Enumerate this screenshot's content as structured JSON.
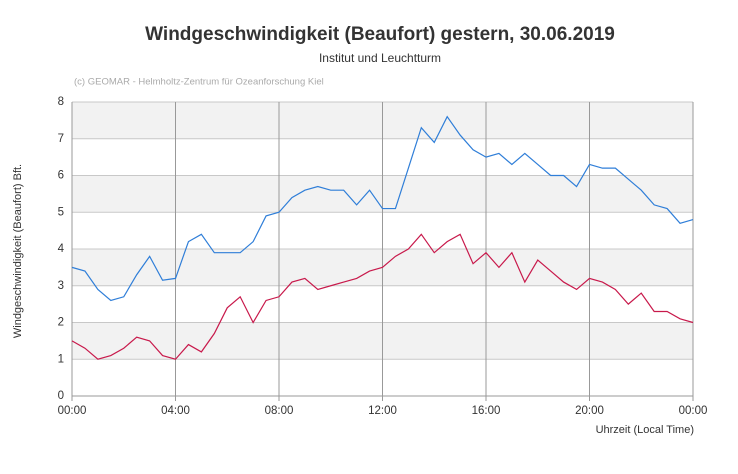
{
  "chart_data": {
    "type": "line",
    "title": "Windgeschwindigkeit (Beaufort) gestern, 30.06.2019",
    "subtitle": "Institut und Leuchtturm",
    "credit": "(c) GEOMAR - Helmholtz-Zentrum für Ozeanforschung Kiel",
    "y_label": "Windgeschwindigkeit (Beaufort)  Bft.",
    "x_label": "Uhrzeit (Local Time)",
    "x": [
      0,
      0.5,
      1,
      1.5,
      2,
      2.5,
      3,
      3.5,
      4,
      4.5,
      5,
      5.5,
      6,
      6.5,
      7,
      7.5,
      8,
      8.5,
      9,
      9.5,
      10,
      10.5,
      11,
      11.5,
      12,
      12.5,
      13,
      13.5,
      14,
      14.5,
      15,
      15.5,
      16,
      16.5,
      17,
      17.5,
      18,
      18.5,
      19,
      19.5,
      20,
      20.5,
      21,
      21.5,
      22,
      22.5,
      23,
      23.5,
      24
    ],
    "series": [
      {
        "name": "Institut",
        "color": "#2f7ed8",
        "values": [
          3.5,
          3.4,
          2.9,
          2.6,
          2.7,
          3.3,
          3.8,
          3.15,
          3.2,
          4.2,
          4.4,
          3.9,
          3.9,
          3.9,
          4.2,
          4.9,
          5.0,
          5.4,
          5.6,
          5.7,
          5.6,
          5.6,
          5.2,
          5.6,
          5.1,
          5.1,
          6.2,
          7.3,
          6.9,
          7.6,
          7.1,
          6.7,
          6.5,
          6.6,
          6.3,
          6.6,
          6.3,
          6.0,
          6.0,
          5.7,
          6.3,
          6.2,
          6.2,
          5.9,
          5.6,
          5.2,
          5.1,
          4.7,
          4.8
        ]
      },
      {
        "name": "Leuchtturm",
        "color": "#c8194b",
        "values": [
          1.5,
          1.3,
          1.0,
          1.1,
          1.3,
          1.6,
          1.5,
          1.1,
          1.0,
          1.4,
          1.2,
          1.7,
          2.4,
          2.7,
          2.0,
          2.6,
          2.7,
          3.1,
          3.2,
          2.9,
          3.0,
          3.1,
          3.2,
          3.4,
          3.5,
          3.8,
          4.0,
          4.4,
          3.9,
          4.2,
          4.4,
          3.6,
          3.9,
          3.5,
          3.9,
          3.1,
          3.7,
          3.4,
          3.1,
          2.9,
          3.2,
          3.1,
          2.9,
          2.5,
          2.8,
          2.3,
          2.3,
          2.1,
          2.0
        ]
      }
    ],
    "xlim": [
      0,
      24
    ],
    "xticks": [
      {
        "value": 0,
        "label": "00:00"
      },
      {
        "value": 4,
        "label": "04:00"
      },
      {
        "value": 8,
        "label": "08:00"
      },
      {
        "value": 12,
        "label": "12:00"
      },
      {
        "value": 16,
        "label": "16:00"
      },
      {
        "value": 20,
        "label": "20:00"
      },
      {
        "value": 24,
        "label": "00:00"
      }
    ],
    "ylim": [
      0,
      8
    ],
    "yticks": [
      0,
      1,
      2,
      3,
      4,
      5,
      6,
      7,
      8
    ],
    "grid": true
  }
}
